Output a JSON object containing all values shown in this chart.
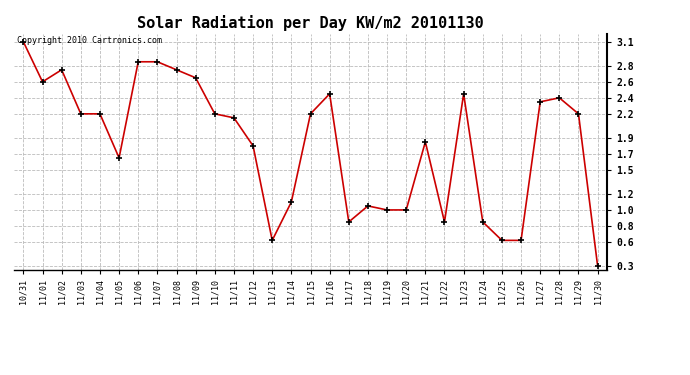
{
  "title": "Solar Radiation per Day KW/m2 20101130",
  "copyright": "Copyright 2010 Cartronics.com",
  "labels": [
    "10/31",
    "11/01",
    "11/02",
    "11/03",
    "11/04",
    "11/05",
    "11/06",
    "11/07",
    "11/08",
    "11/09",
    "11/10",
    "11/11",
    "11/12",
    "11/13",
    "11/14",
    "11/15",
    "11/16",
    "11/17",
    "11/18",
    "11/19",
    "11/20",
    "11/21",
    "11/22",
    "11/23",
    "11/24",
    "11/25",
    "11/26",
    "11/27",
    "11/28",
    "11/29",
    "11/30"
  ],
  "values": [
    3.1,
    2.6,
    2.75,
    2.2,
    2.2,
    1.65,
    2.85,
    2.85,
    2.75,
    2.65,
    2.2,
    2.15,
    1.8,
    0.62,
    1.1,
    2.2,
    2.45,
    0.85,
    1.05,
    1.0,
    1.0,
    1.85,
    0.85,
    2.45,
    0.85,
    0.62,
    0.62,
    2.35,
    2.4,
    2.2,
    0.3
  ],
  "line_color": "#cc0000",
  "marker_color": "#000000",
  "bg_color": "#ffffff",
  "grid_color": "#bbbbbb",
  "yticks": [
    3.1,
    2.8,
    2.6,
    2.4,
    2.2,
    1.9,
    1.7,
    1.5,
    1.2,
    1.0,
    0.8,
    0.6,
    0.3
  ],
  "ylim_min": 0.25,
  "ylim_max": 3.2,
  "title_fontsize": 11,
  "tick_fontsize": 6,
  "copyright_fontsize": 6
}
